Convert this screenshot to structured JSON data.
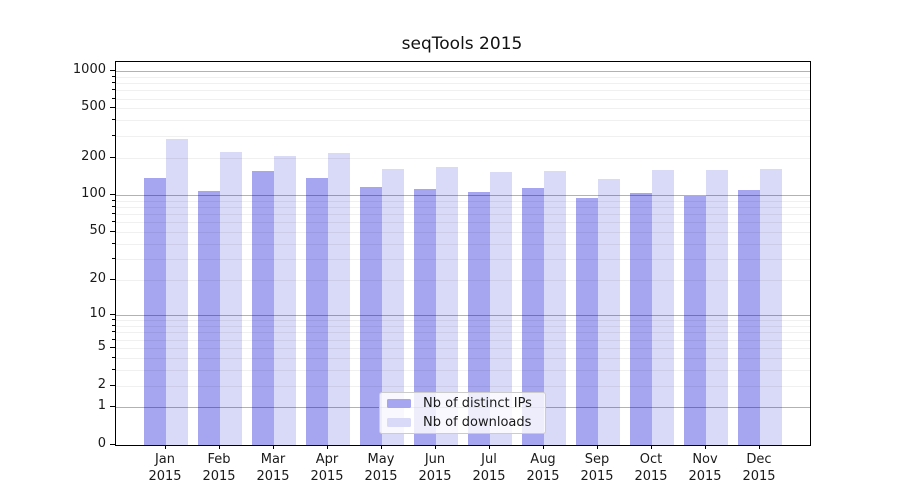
{
  "title": "seqTools 2015",
  "colors": {
    "series_distinct_ips": "#a5a5f0",
    "series_downloads": "#d9d9f8",
    "major_gridline": "rgba(0,0,0,0.30)",
    "minor_gridline": "rgba(0,0,0,0.06)",
    "axis_spine": "#000000",
    "text": "#1a1a1a",
    "legend_background": "rgba(255,255,255,0.8)",
    "legend_border": "#cccccc"
  },
  "chart_data": {
    "type": "bar",
    "title": "seqTools 2015",
    "xlabel": "",
    "ylabel": "",
    "categories": [
      "Jan",
      "Feb",
      "Mar",
      "Apr",
      "May",
      "Jun",
      "Jul",
      "Aug",
      "Sep",
      "Oct",
      "Nov",
      "Dec"
    ],
    "year_label": "2015",
    "series": [
      {
        "name": "Nb of distinct IPs",
        "color": "#a5a5f0",
        "values": [
          137,
          108,
          156,
          138,
          116,
          112,
          106,
          114,
          94,
          105,
          99,
          110
        ]
      },
      {
        "name": "Nb of downloads",
        "color": "#d9d9f8",
        "values": [
          285,
          225,
          208,
          221,
          163,
          169,
          155,
          157,
          136,
          159,
          159,
          162
        ]
      }
    ],
    "y_scale": "log10(value+1)",
    "ylim": [
      0,
      1180
    ],
    "y_tick_labels": [
      0,
      1,
      2,
      5,
      10,
      20,
      50,
      100,
      200,
      500,
      1000
    ],
    "y_major_gridlines": [
      1,
      10,
      100,
      1000
    ],
    "y_minor_gridlines": [
      2,
      3,
      4,
      5,
      6,
      7,
      8,
      9,
      20,
      30,
      40,
      50,
      60,
      70,
      80,
      90,
      200,
      300,
      400,
      500,
      600,
      700,
      800,
      900
    ],
    "grid": true,
    "legend_position": "lower center"
  }
}
